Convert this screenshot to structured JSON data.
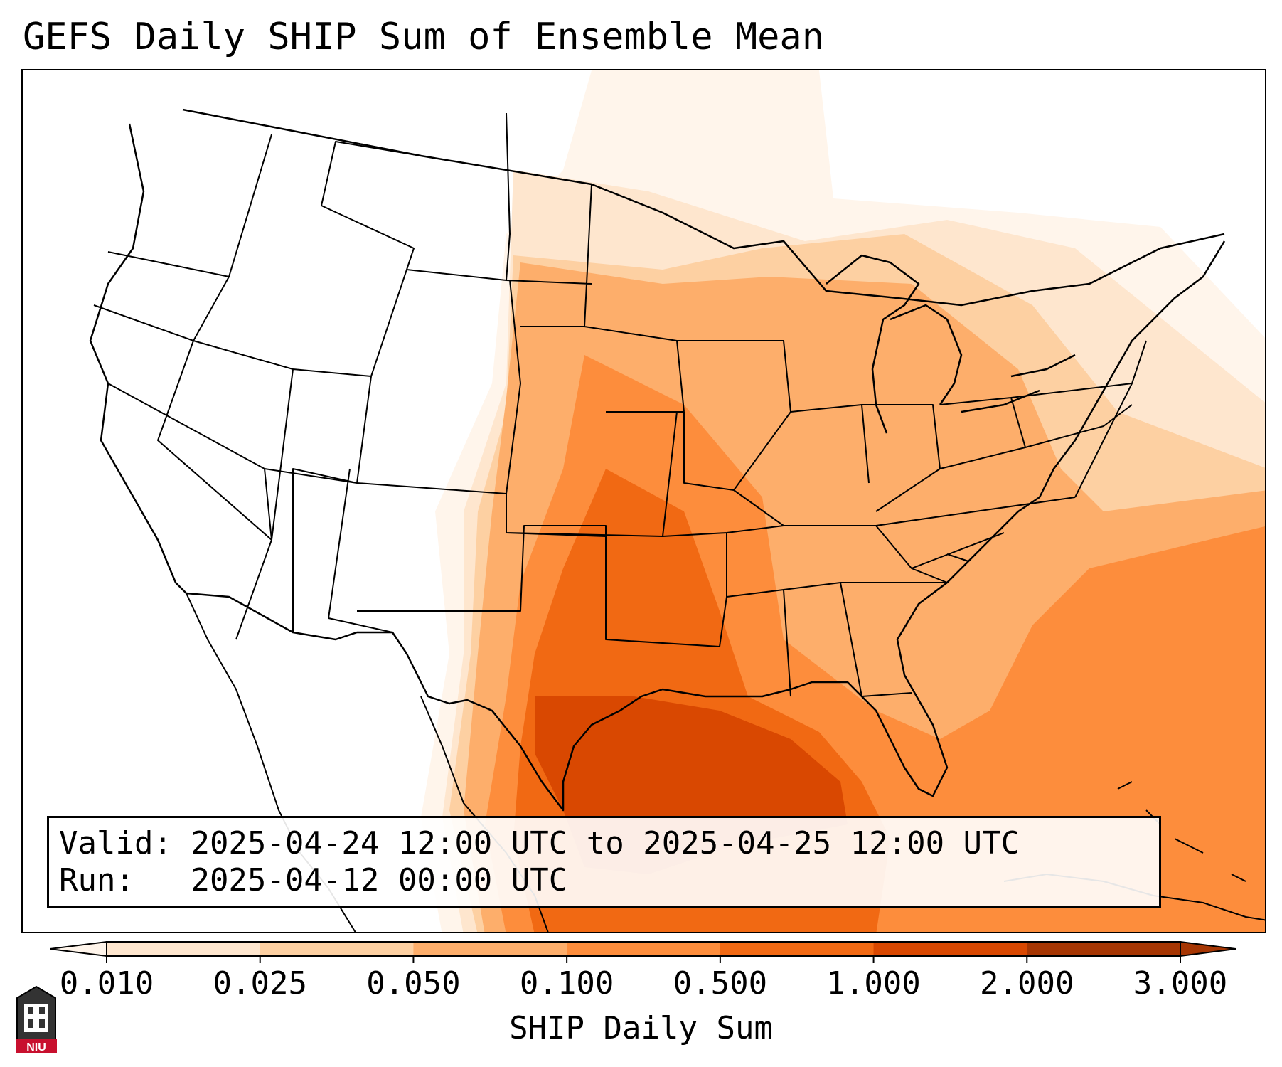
{
  "title": "GEFS Daily SHIP Sum of Ensemble Mean",
  "info": {
    "valid_label": "Valid:",
    "valid_value": "2025-04-24 12:00 UTC to 2025-04-25 12:00 UTC",
    "run_label": "Run:",
    "run_value": "2025-04-12 00:00 UTC"
  },
  "colorbar": {
    "label": "SHIP Daily Sum",
    "ticks": [
      "0.010",
      "0.025",
      "0.050",
      "0.100",
      "0.500",
      "1.000",
      "2.000",
      "3.000"
    ],
    "colors": [
      "#fff5eb",
      "#fee6ce",
      "#fdd0a2",
      "#fdae6b",
      "#fd8d3c",
      "#f16913",
      "#d94801",
      "#a63603"
    ],
    "extend": "both"
  },
  "logo": {
    "text": "NIU",
    "color": "#c8102e",
    "icon": "university-tower-logo"
  }
}
